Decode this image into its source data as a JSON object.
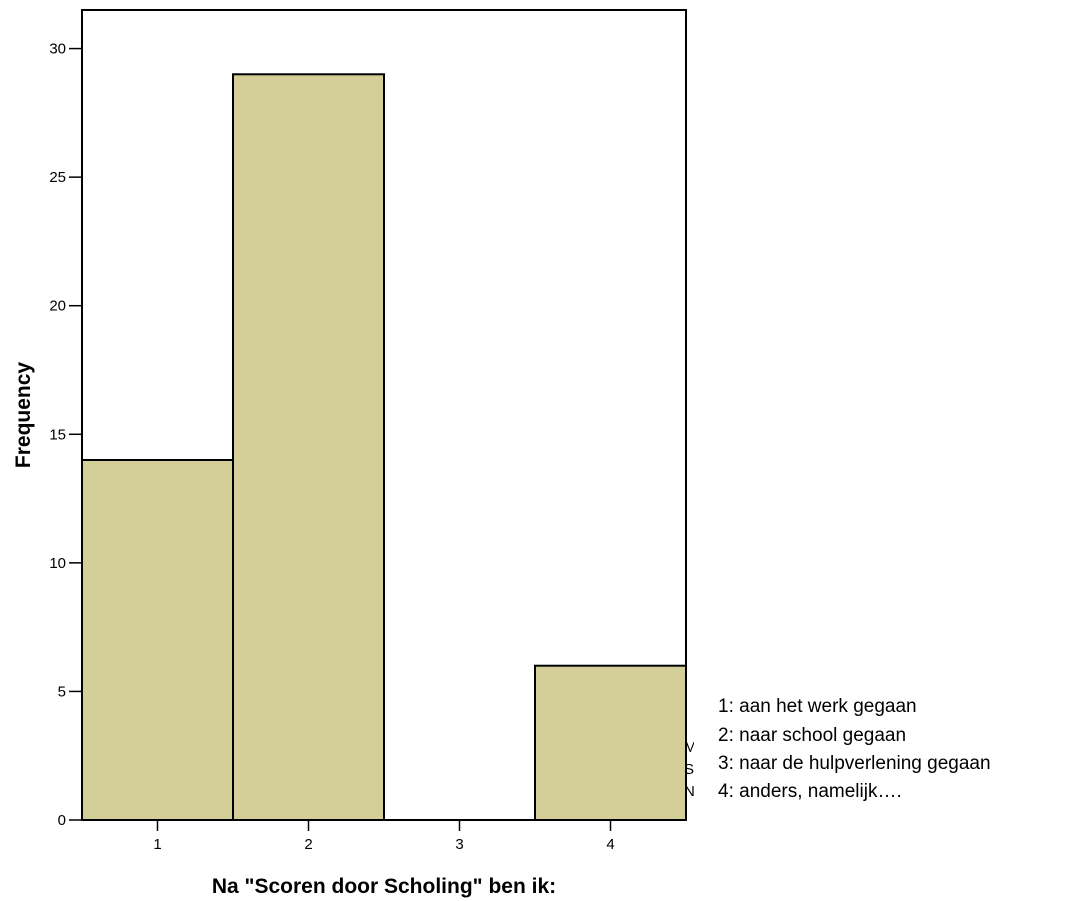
{
  "chart_data": {
    "type": "bar",
    "categories": [
      "1",
      "2",
      "3",
      "4"
    ],
    "values": [
      14,
      29,
      0,
      6
    ],
    "xlabel": "Na \"Scoren door Scholing\" ben ik:",
    "ylabel": "Frequency",
    "xlim": [
      0.5,
      4.5
    ],
    "ylim": [
      0,
      31.5
    ],
    "yticks": [
      "0",
      "5",
      "10",
      "15",
      "20",
      "25",
      "30"
    ],
    "grid": false,
    "bar_color": "#d4cf98",
    "stats_fragments": [
      "M",
      "S",
      "N"
    ],
    "legend": [
      "1: aan het werk gegaan",
      "2: naar school gegaan",
      "3: naar de hulpverlening gegaan",
      "4: anders, namelijk…."
    ]
  }
}
